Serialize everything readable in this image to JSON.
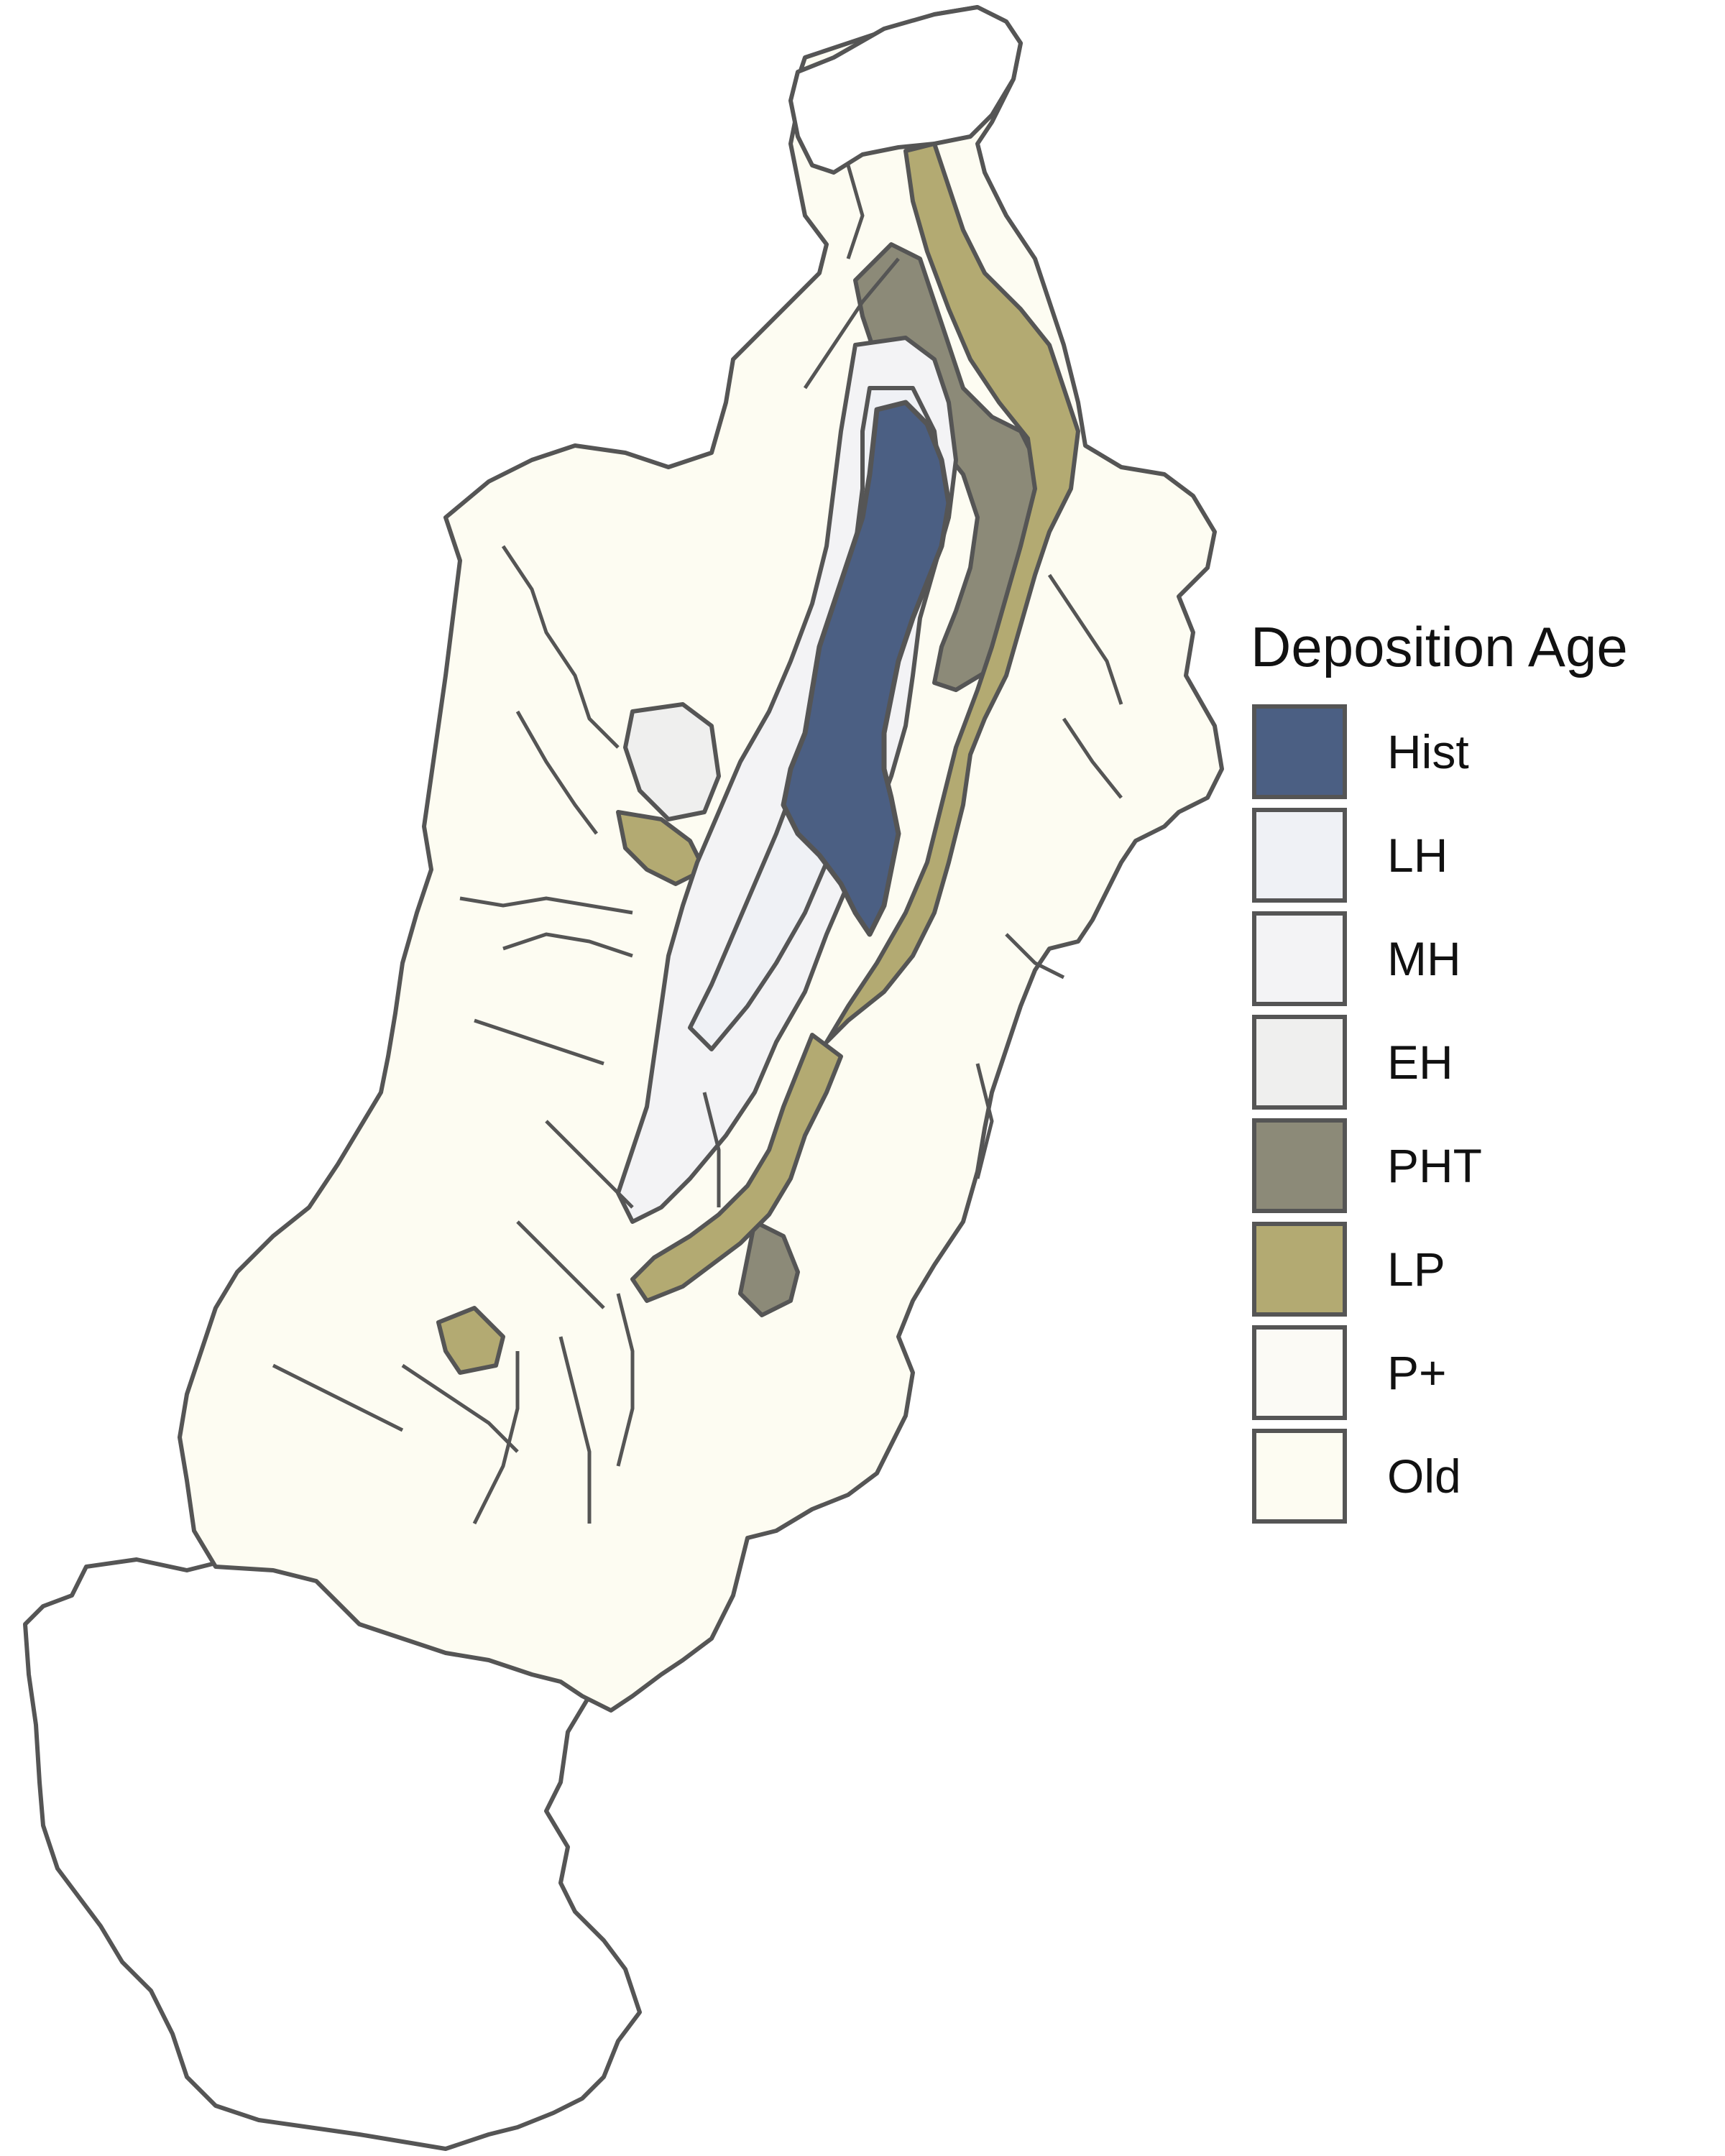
{
  "legend": {
    "title": "Deposition Age",
    "items": [
      {
        "label": "Hist",
        "color": "#4b5f83"
      },
      {
        "label": "LH",
        "color": "#eff1f5"
      },
      {
        "label": "MH",
        "color": "#f3f3f5"
      },
      {
        "label": "EH",
        "color": "#efefee"
      },
      {
        "label": "PHT",
        "color": "#8c8a78"
      },
      {
        "label": "LP",
        "color": "#b3aa72"
      },
      {
        "label": "P+",
        "color": "#fbfaf5"
      },
      {
        "label": "Old",
        "color": "#fdfcf2"
      }
    ]
  },
  "map": {
    "outline_color": "#555555",
    "outside_fill": "#ffffff"
  }
}
